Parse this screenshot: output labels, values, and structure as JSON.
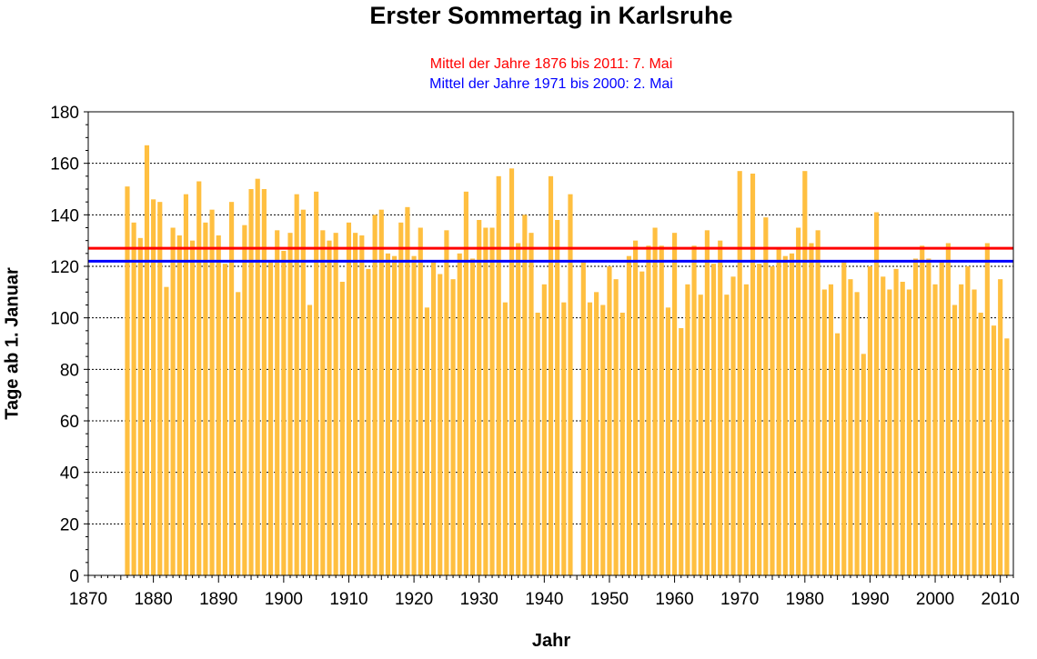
{
  "chart_data": {
    "type": "bar",
    "title": "Erster Sommertag in Karlsruhe",
    "xlabel": "Jahr",
    "ylabel": "Tage ab 1. Januar",
    "xlim": [
      1870,
      2012
    ],
    "ylim": [
      0,
      180
    ],
    "x_ticks": [
      1870,
      1880,
      1890,
      1900,
      1910,
      1920,
      1930,
      1940,
      1950,
      1960,
      1970,
      1980,
      1990,
      2000,
      2010
    ],
    "y_ticks": [
      0,
      20,
      40,
      60,
      80,
      100,
      120,
      140,
      160,
      180
    ],
    "grid": "horizontal dotted",
    "bar_color": "#ffbf40",
    "reference_lines": [
      {
        "label": "Mittel der Jahre 1876 bis 2011: 7. Mai",
        "value": 127,
        "color": "#ff0000"
      },
      {
        "label": "Mittel der Jahre 1971 bis 2000: 2. Mai",
        "value": 122,
        "color": "#0000ff"
      }
    ],
    "x": [
      1876,
      1877,
      1878,
      1879,
      1880,
      1881,
      1882,
      1883,
      1884,
      1885,
      1886,
      1887,
      1888,
      1889,
      1890,
      1891,
      1892,
      1893,
      1894,
      1895,
      1896,
      1897,
      1898,
      1899,
      1900,
      1901,
      1902,
      1903,
      1904,
      1905,
      1906,
      1907,
      1908,
      1909,
      1910,
      1911,
      1912,
      1913,
      1914,
      1915,
      1916,
      1917,
      1918,
      1919,
      1920,
      1921,
      1922,
      1923,
      1924,
      1925,
      1926,
      1927,
      1928,
      1929,
      1930,
      1931,
      1932,
      1933,
      1934,
      1935,
      1936,
      1937,
      1938,
      1939,
      1940,
      1941,
      1942,
      1943,
      1944,
      1945,
      1946,
      1947,
      1948,
      1949,
      1950,
      1951,
      1952,
      1953,
      1954,
      1955,
      1956,
      1957,
      1958,
      1959,
      1960,
      1961,
      1962,
      1963,
      1964,
      1965,
      1966,
      1967,
      1968,
      1969,
      1970,
      1971,
      1972,
      1973,
      1974,
      1975,
      1976,
      1977,
      1978,
      1979,
      1980,
      1981,
      1982,
      1983,
      1984,
      1985,
      1986,
      1987,
      1988,
      1989,
      1990,
      1991,
      1992,
      1993,
      1994,
      1995,
      1996,
      1997,
      1998,
      1999,
      2000,
      2001,
      2002,
      2003,
      2004,
      2005,
      2006,
      2007,
      2008,
      2009,
      2010,
      2011
    ],
    "values": [
      151,
      137,
      131,
      167,
      146,
      145,
      112,
      135,
      132,
      148,
      130,
      153,
      137,
      142,
      132,
      121,
      145,
      110,
      136,
      150,
      154,
      150,
      122,
      134,
      126,
      133,
      148,
      142,
      105,
      149,
      134,
      130,
      133,
      114,
      137,
      133,
      132,
      119,
      140,
      142,
      125,
      124,
      137,
      143,
      124,
      135,
      104,
      122,
      117,
      134,
      115,
      125,
      149,
      123,
      138,
      135,
      135,
      155,
      106,
      158,
      129,
      140,
      133,
      102,
      113,
      155,
      138,
      106,
      148,
      null,
      122,
      106,
      110,
      105,
      120,
      115,
      102,
      124,
      130,
      118,
      128,
      135,
      128,
      104,
      133,
      96,
      113,
      128,
      109,
      134,
      121,
      130,
      109,
      116,
      157,
      113,
      156,
      121,
      139,
      120,
      127,
      124,
      125,
      135,
      157,
      129,
      134,
      111,
      113,
      94,
      122,
      115,
      110,
      86,
      120,
      141,
      116,
      111,
      119,
      114,
      111,
      123,
      128,
      123,
      113,
      122,
      129,
      105,
      113,
      120,
      111,
      102,
      129,
      97,
      115,
      92
    ]
  }
}
